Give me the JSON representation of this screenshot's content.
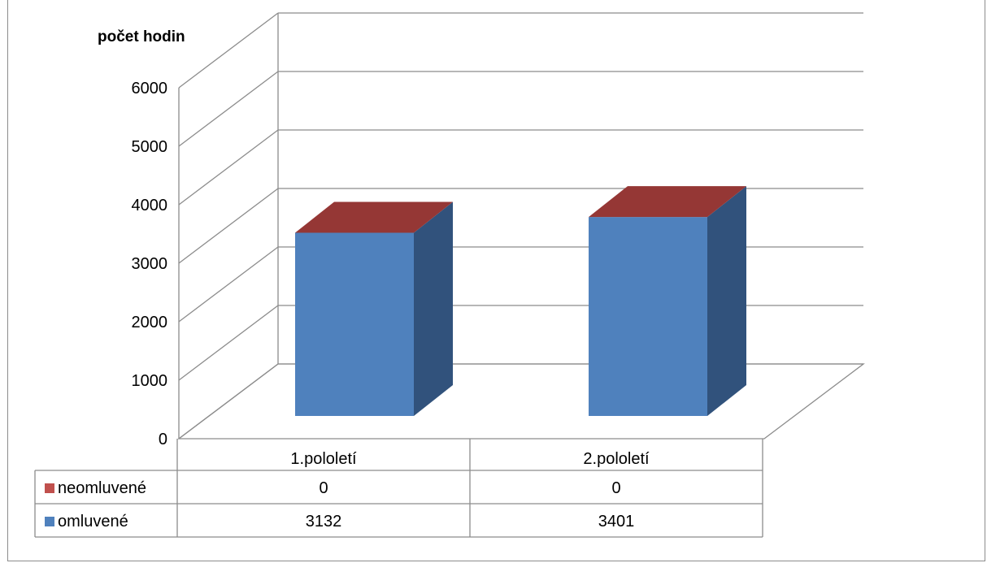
{
  "chart_data": {
    "type": "bar",
    "style": "3d-stacked-column-with-data-table",
    "ylabel": "počet hodin",
    "xlabel": "",
    "ylim": [
      0,
      6000
    ],
    "yticks": [
      "0",
      "1000",
      "2000",
      "3000",
      "4000",
      "5000",
      "6000"
    ],
    "categories": [
      "1.pololetí",
      "2.pololetí"
    ],
    "grid": true,
    "legend": "data-table",
    "series": [
      {
        "name": "neomluvené",
        "values": [
          0,
          0
        ],
        "labels": [
          "0",
          "0"
        ],
        "color": "#c0504d",
        "top_color": "#953735"
      },
      {
        "name": "omluvené",
        "values": [
          3132,
          3401
        ],
        "labels": [
          "3132",
          "3401"
        ],
        "color": "#4f81bd",
        "side_color": "#31527c"
      }
    ]
  }
}
